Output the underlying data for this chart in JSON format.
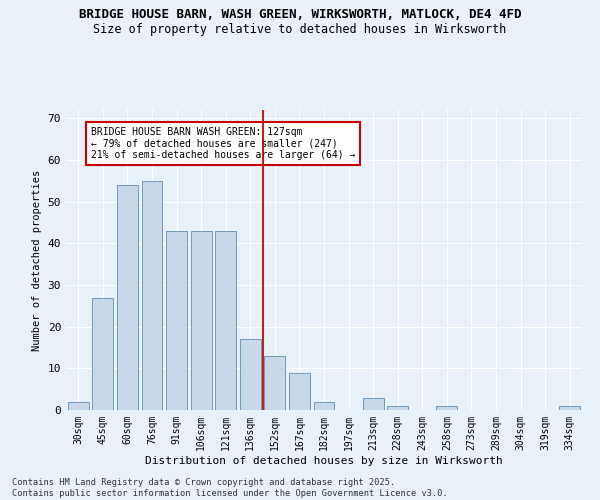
{
  "title_line1": "BRIDGE HOUSE BARN, WASH GREEN, WIRKSWORTH, MATLOCK, DE4 4FD",
  "title_line2": "Size of property relative to detached houses in Wirksworth",
  "xlabel": "Distribution of detached houses by size in Wirksworth",
  "ylabel": "Number of detached properties",
  "categories": [
    "30sqm",
    "45sqm",
    "60sqm",
    "76sqm",
    "91sqm",
    "106sqm",
    "121sqm",
    "136sqm",
    "152sqm",
    "167sqm",
    "182sqm",
    "197sqm",
    "213sqm",
    "228sqm",
    "243sqm",
    "258sqm",
    "273sqm",
    "289sqm",
    "304sqm",
    "319sqm",
    "334sqm"
  ],
  "values": [
    2,
    27,
    54,
    55,
    43,
    43,
    43,
    17,
    13,
    9,
    2,
    0,
    3,
    1,
    0,
    1,
    0,
    0,
    0,
    0,
    1
  ],
  "bar_color": "#c8d8e8",
  "bar_edge_color": "#6090b0",
  "vline_x": 7.5,
  "vline_color": "#cc0000",
  "annotation_text": "BRIDGE HOUSE BARN WASH GREEN: 127sqm\n← 79% of detached houses are smaller (247)\n21% of semi-detached houses are larger (64) →",
  "annotation_box_color": "#ffffff",
  "annotation_box_edge": "#cc0000",
  "ylim": [
    0,
    72
  ],
  "yticks": [
    0,
    10,
    20,
    30,
    40,
    50,
    60,
    70
  ],
  "background_color": "#e8f0f8",
  "footer_line1": "Contains HM Land Registry data © Crown copyright and database right 2025.",
  "footer_line2": "Contains public sector information licensed under the Open Government Licence v3.0."
}
